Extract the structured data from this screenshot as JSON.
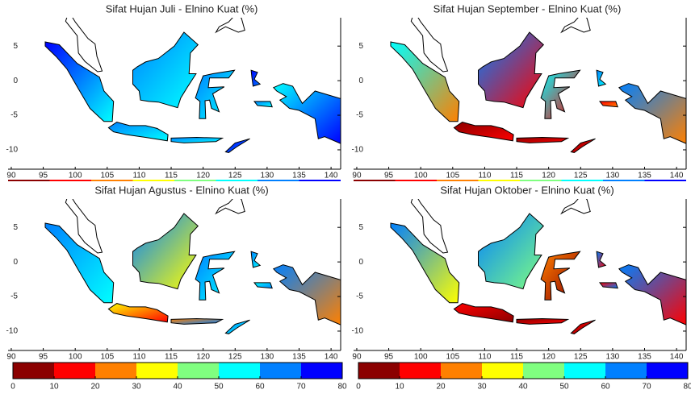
{
  "panels": [
    {
      "title": "Sifat Hujan Juli - Elnino Kuat (%)"
    },
    {
      "title": "Sifat Hujan September - Elnino Kuat (%)"
    },
    {
      "title": "Sifat Hujan Agustus - Elnino Kuat (%)"
    },
    {
      "title": "Sifat Hujan Oktober - Elnino Kuat (%)"
    }
  ],
  "xlim": [
    89.5,
    141.5
  ],
  "ylim": [
    -12.8,
    9.1
  ],
  "xticks": [
    90,
    95,
    100,
    105,
    110,
    115,
    120,
    125,
    130,
    135,
    140
  ],
  "yticks": [
    5,
    0,
    -5,
    -10
  ],
  "colorbar": {
    "lim": [
      0,
      80
    ],
    "ticks": [
      0,
      10,
      20,
      30,
      40,
      50,
      60,
      70,
      80
    ],
    "colors": [
      "#8b0000",
      "#ff0000",
      "#ff8000",
      "#ffff00",
      "#80ff80",
      "#00ffff",
      "#0080ff",
      "#0000ff"
    ]
  }
}
